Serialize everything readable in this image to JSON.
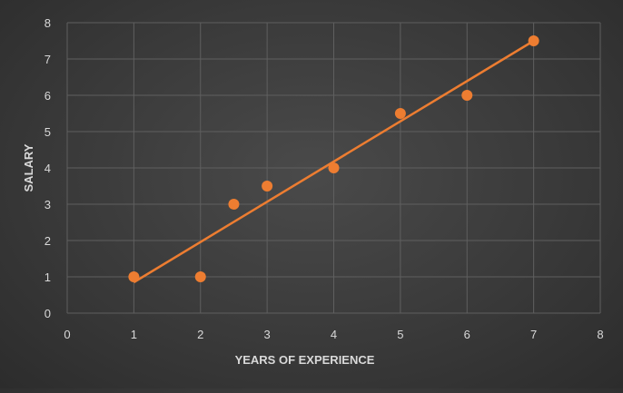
{
  "chart_data": {
    "type": "scatter",
    "xlabel": "YEARS OF EXPERIENCE",
    "ylabel": "SALARY",
    "xlim": [
      0,
      8
    ],
    "ylim": [
      0,
      8
    ],
    "xticks": [
      "0",
      "1",
      "2",
      "3",
      "4",
      "5",
      "6",
      "7",
      "8"
    ],
    "yticks": [
      "0",
      "1",
      "2",
      "3",
      "4",
      "5",
      "6",
      "7",
      "8"
    ],
    "grid": true,
    "series": [
      {
        "x": [
          1,
          2,
          2.5,
          3,
          4,
          5,
          6,
          7
        ],
        "y": [
          1,
          1,
          3,
          3.5,
          4,
          5.5,
          6,
          7.5
        ]
      }
    ],
    "trendline": {
      "type": "linear",
      "x_range": [
        1,
        7
      ],
      "y_range": [
        0.85,
        7.5
      ]
    },
    "colors": {
      "marker": "#ed7d31",
      "trendline": "#ed7d31",
      "grid": "#5f5f5f",
      "text": "#d9d9d9"
    }
  }
}
